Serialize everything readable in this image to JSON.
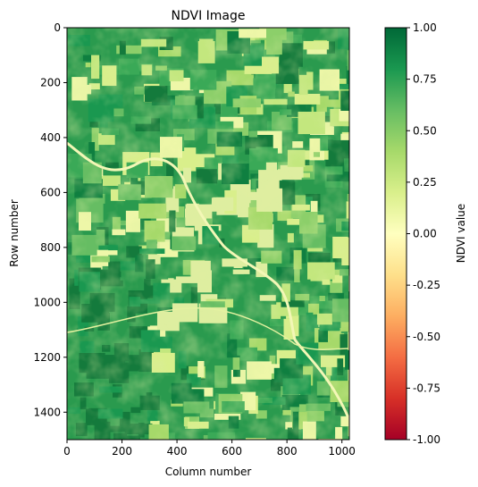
{
  "chart_data": {
    "type": "heatmap",
    "title": "NDVI Image",
    "xlabel": "Column number",
    "ylabel": "Row number",
    "xlim": [
      0,
      1027
    ],
    "ylim": [
      1500,
      0
    ],
    "xticks": [
      0,
      200,
      400,
      600,
      800,
      1000
    ],
    "yticks": [
      0,
      200,
      400,
      600,
      800,
      1000,
      1200,
      1400
    ],
    "colorbar": {
      "label": "NDVI value",
      "colormap": "RdYlGn",
      "range": [
        -1.0,
        1.0
      ],
      "ticks": [
        "-1.00",
        "-0.75",
        "-0.50",
        "-0.25",
        "0.00",
        "0.25",
        "0.50",
        "0.75",
        "1.00"
      ],
      "tick_values": [
        -1.0,
        -0.75,
        -0.5,
        -0.25,
        0.0,
        0.25,
        0.5,
        0.75,
        1.0
      ],
      "stops": [
        "#a50026",
        "#d73027",
        "#f46d43",
        "#fdae61",
        "#fee08b",
        "#ffffbf",
        "#d9ef8b",
        "#a6d96a",
        "#66bd63",
        "#1a9850",
        "#006837"
      ]
    },
    "image_description_values": {
      "dominant_range": [
        0.1,
        0.85
      ],
      "min_visible": -0.05
    }
  }
}
